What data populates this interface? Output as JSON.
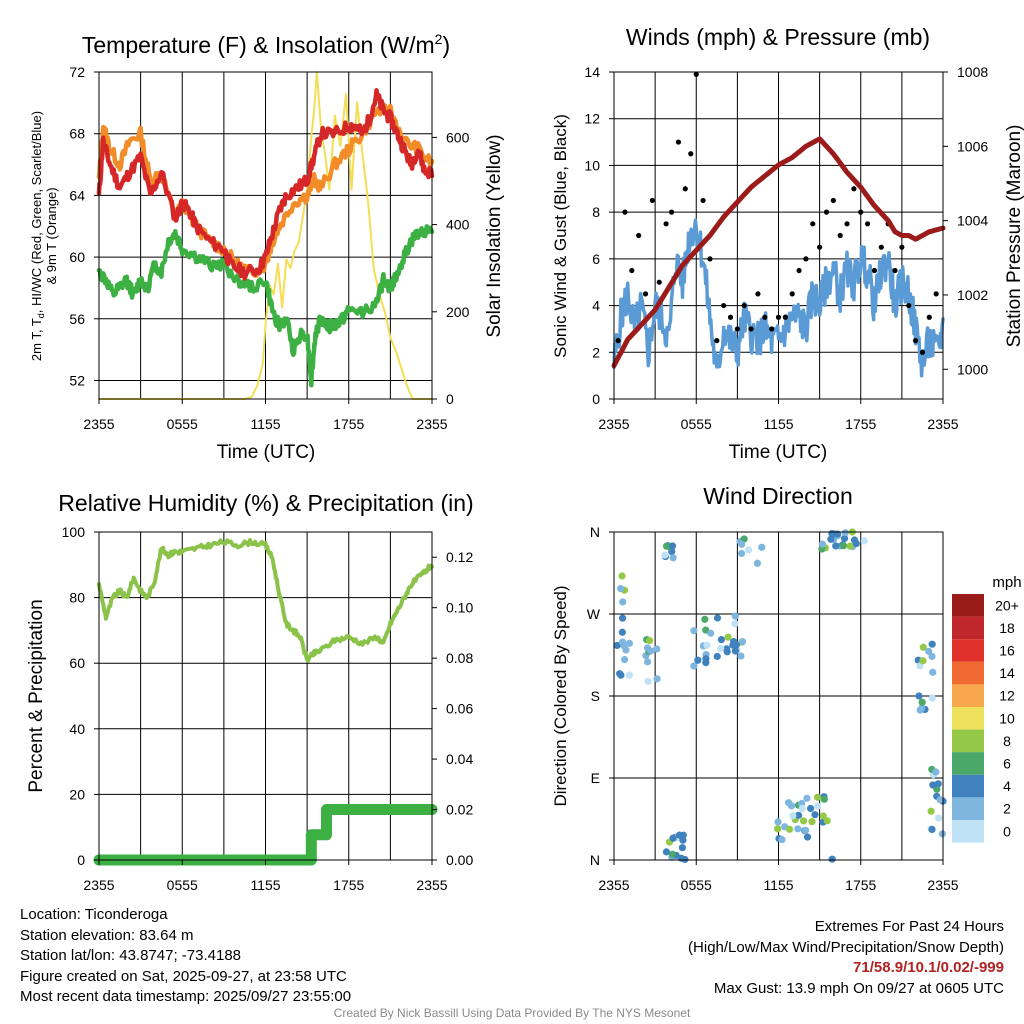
{
  "chart_data": [
    {
      "type": "line",
      "title": "Temperature (F) & Insolation (W/m",
      "title_sup": "2",
      "title_end": ")",
      "xlabel": "Time (UTC)",
      "ylabel_lines": [
        "2m T, T",
        "d",
        ", HI/WC (Red, Green, Scarlet/Blue)",
        "& 9m T (Orange)"
      ],
      "y2label": "Solar Insolation (Yellow)",
      "x_ticks": [
        "2355",
        "0555",
        "1155",
        "1755",
        "2355"
      ],
      "ylim": [
        50.8,
        72
      ],
      "y_ticks": [
        52,
        56,
        60,
        64,
        68,
        72
      ],
      "y2lim": [
        0,
        750
      ],
      "y2_ticks": [
        0,
        200,
        400,
        600
      ],
      "series": [
        {
          "name": "2m T",
          "color": "#d62728",
          "x": [
            0,
            0.3,
            0.8,
            1.5,
            2.2,
            3,
            3.7,
            4.5,
            5.5,
            6,
            6.5,
            7,
            8,
            9,
            9.5,
            10.5,
            11.5,
            12,
            12.5,
            13,
            13.5,
            14.3,
            15,
            15.5,
            16,
            17,
            18,
            18.5,
            19,
            19.5,
            20,
            20.5,
            21,
            21.5,
            22,
            22.5,
            23,
            23.5,
            24
          ],
          "values": [
            64,
            67.5,
            66,
            64.5,
            65.5,
            66.5,
            64,
            65.5,
            62.5,
            63.5,
            63,
            62,
            61,
            60.5,
            59.5,
            59,
            59.2,
            60,
            61.5,
            63,
            64,
            64.5,
            65,
            66.5,
            68,
            68,
            68.5,
            68.5,
            68,
            69,
            70.5,
            69.5,
            69,
            68,
            67,
            66,
            67,
            65.5,
            65.5
          ]
        },
        {
          "name": "Td",
          "color": "#3cb043",
          "x": [
            0,
            0.5,
            1,
            1.5,
            2,
            2.5,
            3,
            3.5,
            4,
            4.5,
            5,
            5.5,
            6,
            7,
            8,
            9,
            10,
            11,
            12,
            12.5,
            13,
            13.5,
            14,
            14.5,
            15,
            15.3,
            15.6,
            16,
            16.5,
            17,
            17.5,
            18,
            19,
            20,
            20.5,
            21,
            21.5,
            22,
            22.5,
            23,
            24
          ],
          "values": [
            59,
            58.5,
            57.5,
            58,
            58.5,
            57.5,
            58.5,
            58,
            59.5,
            59,
            61,
            61.5,
            60.5,
            60,
            59.5,
            59.5,
            58.5,
            58,
            58.5,
            56.5,
            55.5,
            56,
            54,
            55,
            55,
            52,
            55,
            56,
            55.5,
            55.5,
            56,
            56.5,
            56.5,
            57,
            58.5,
            58,
            59,
            60,
            61,
            61.5,
            62
          ]
        },
        {
          "name": "9m T",
          "color": "#f28c28",
          "x": [
            0,
            0.3,
            0.8,
            1.5,
            2.2,
            3,
            3.7,
            4.5,
            5.5,
            6,
            7,
            8,
            9,
            10,
            11,
            12,
            12.5,
            13,
            14,
            15,
            15.5,
            16,
            17,
            18,
            19,
            20,
            21,
            22,
            23,
            24
          ],
          "values": [
            65,
            68.5,
            67,
            66,
            67.5,
            68,
            65,
            65.5,
            62.5,
            63.5,
            62,
            61,
            60.5,
            59.5,
            59,
            59.5,
            61,
            62,
            63.5,
            64,
            65,
            64.5,
            66,
            67,
            68,
            69.5,
            69.5,
            67.5,
            67,
            66
          ]
        },
        {
          "name": "Solar",
          "color": "#f5de54",
          "axis": "y2",
          "x": [
            0,
            10.5,
            11,
            11.4,
            11.8,
            12,
            12.3,
            12.6,
            12.9,
            13.2,
            13.5,
            13.8,
            14.1,
            14.4,
            14.7,
            15,
            15.3,
            15.5,
            15.7,
            16,
            16.3,
            16.6,
            17,
            17.4,
            17.8,
            18.2,
            18.6,
            19,
            19.4,
            19.8,
            20.2,
            20.6,
            21,
            21.4,
            21.8,
            22.2,
            22.6,
            24
          ],
          "values": [
            0,
            0,
            5,
            30,
            80,
            170,
            260,
            240,
            310,
            210,
            320,
            300,
            340,
            360,
            420,
            480,
            600,
            660,
            750,
            620,
            560,
            480,
            650,
            580,
            700,
            480,
            680,
            560,
            450,
            300,
            240,
            200,
            140,
            110,
            70,
            30,
            0,
            0
          ]
        }
      ]
    },
    {
      "type": "scatter",
      "title": "Winds (mph) & Pressure (mb)",
      "xlabel": "Time (UTC)",
      "ylabel": "Sonic Wind & Gust (Blue, Black)",
      "y2label": "Station Pressure (Maroon)",
      "x_ticks": [
        "2355",
        "0555",
        "1155",
        "1755",
        "2355"
      ],
      "ylim": [
        0,
        14
      ],
      "y_ticks": [
        0,
        2,
        4,
        6,
        8,
        10,
        12,
        14
      ],
      "y2lim": [
        999.2,
        1008
      ],
      "y2_ticks": [
        1000,
        1002,
        1004,
        1006,
        1008
      ],
      "series": [
        {
          "name": "Sonic Wind",
          "color": "#5b9bd5",
          "x": [
            0,
            0.5,
            1,
            1.5,
            2,
            2.5,
            3,
            3.5,
            4,
            4.5,
            5,
            5.5,
            6,
            6.5,
            7,
            7.5,
            8,
            8.5,
            9,
            9.5,
            10,
            10.5,
            11,
            11.5,
            12,
            12.5,
            13,
            13.5,
            14,
            14.5,
            15,
            15.5,
            16,
            16.5,
            17,
            17.5,
            18,
            18.5,
            19,
            19.5,
            20,
            20.5,
            21,
            21.5,
            22,
            22.5,
            23,
            23.5,
            24
          ],
          "values": [
            1.5,
            3.5,
            4.5,
            3,
            4,
            2,
            4,
            3.5,
            2.5,
            6,
            5,
            7,
            7.5,
            6,
            3.5,
            1,
            3,
            2.5,
            2,
            3.5,
            2.8,
            2.5,
            3,
            2.5,
            2.5,
            3,
            3.5,
            3.5,
            3,
            4.5,
            4,
            5,
            5.5,
            4.5,
            5.5,
            5,
            6,
            5.5,
            4,
            5.5,
            6,
            4,
            5,
            4.5,
            3,
            1.5,
            2.5,
            2,
            3
          ]
        },
        {
          "name": "Gust",
          "color": "#000000",
          "x": [
            0.3,
            0.8,
            1.3,
            1.8,
            2.3,
            2.8,
            3.3,
            3.8,
            4.2,
            4.7,
            5.2,
            5.6,
            6,
            6.5,
            7,
            7.5,
            8,
            8.5,
            9,
            9.5,
            10,
            10.5,
            11,
            11.5,
            12,
            12.5,
            13,
            13.5,
            14,
            14.5,
            15,
            15.5,
            16,
            16.5,
            17,
            17.5,
            18,
            18.5,
            19,
            19.5,
            20,
            20.5,
            21,
            21.5,
            22,
            22.5,
            23,
            23.5
          ],
          "values": [
            2.5,
            8,
            5.5,
            7,
            4.5,
            8.5,
            5,
            7.5,
            8,
            11,
            9,
            10.5,
            13.9,
            8.5,
            6,
            2.5,
            4,
            3.5,
            3,
            4,
            3,
            4.5,
            3.5,
            3,
            3.5,
            3.5,
            4.5,
            5.5,
            6,
            7.5,
            6.5,
            8,
            8.5,
            7,
            7.5,
            9,
            8,
            7.5,
            5.5,
            6.5,
            7.5,
            5.5,
            6.5,
            4,
            2.5,
            2,
            3.5,
            4.5
          ]
        },
        {
          "name": "Pressure",
          "color": "#9b1b1b",
          "axis": "y2",
          "x": [
            0,
            1,
            2,
            3,
            4,
            5,
            6,
            7,
            8,
            9,
            10,
            11,
            12,
            13,
            14,
            15,
            16,
            17,
            18,
            19,
            20,
            20.5,
            21,
            21.5,
            22,
            22.5,
            23,
            24
          ],
          "values": [
            1000.1,
            1000.8,
            1001.2,
            1001.6,
            1002.2,
            1002.8,
            1003.2,
            1003.6,
            1004.1,
            1004.5,
            1004.9,
            1005.2,
            1005.5,
            1005.7,
            1006,
            1006.2,
            1005.8,
            1005.3,
            1004.9,
            1004.4,
            1004,
            1003.7,
            1003.6,
            1003.6,
            1003.5,
            1003.6,
            1003.7,
            1003.8
          ]
        }
      ]
    },
    {
      "type": "line",
      "title": "Relative Humidity (%) & Precipitation (in)",
      "xlabel": "",
      "ylabel": "Percent & Precipitation",
      "x_ticks": [
        "2355",
        "0555",
        "1155",
        "1755",
        "2355"
      ],
      "ylim": [
        0,
        100
      ],
      "y_ticks": [
        0,
        20,
        40,
        60,
        80,
        100
      ],
      "y2lim": [
        0,
        0.13
      ],
      "y2_ticks": [
        "0.00",
        "0.02",
        "0.04",
        "0.06",
        "0.08",
        "0.10",
        "0.12"
      ],
      "series": [
        {
          "name": "Relative Humidity",
          "color": "#8bc34a",
          "x": [
            0,
            0.5,
            1,
            1.5,
            2,
            2.5,
            3,
            3.5,
            4,
            4.5,
            5,
            5.5,
            6,
            7,
            8,
            9,
            10,
            11,
            12,
            12.5,
            13,
            13.5,
            14,
            14.5,
            15,
            15.5,
            16,
            17,
            18,
            19,
            20,
            20.5,
            21,
            21.5,
            22,
            22.5,
            23,
            23.5,
            24
          ],
          "values": [
            84,
            74,
            80,
            82,
            80,
            86,
            82,
            80,
            85,
            95,
            93,
            94,
            94,
            95,
            96,
            97,
            96,
            97,
            96,
            92,
            81,
            72,
            70,
            68,
            61,
            63,
            64,
            67,
            68,
            66,
            68,
            66,
            72,
            76,
            80,
            84,
            86,
            88,
            90
          ]
        },
        {
          "name": "Precipitation",
          "color": "#3cb043",
          "axis": "y2",
          "x": [
            0,
            15.3,
            15.3,
            16.4,
            16.4,
            24
          ],
          "values": [
            0,
            0,
            0.01,
            0.01,
            0.02,
            0.02
          ]
        }
      ]
    },
    {
      "type": "scatter",
      "title": "Wind Direction",
      "ylabel": "Direction (Colored By Speed)",
      "x_ticks": [
        "2355",
        "0555",
        "1155",
        "1755",
        "2355"
      ],
      "y_tick_labels": [
        "N",
        "E",
        "S",
        "W",
        "N"
      ],
      "y_tick_degrees": [
        0,
        90,
        180,
        270,
        360
      ],
      "ylim": [
        0,
        360
      ],
      "colorbar_title": "mph",
      "colorbar_labels": [
        "20+",
        "18",
        "16",
        "14",
        "12",
        "10",
        "8",
        "6",
        "4",
        "2",
        "0"
      ],
      "colorbar_colors": [
        "#9b1b1b",
        "#c0272d",
        "#e0312b",
        "#f06a31",
        "#f8a84c",
        "#ede05a",
        "#93c947",
        "#4aa868",
        "#3f82be",
        "#7fb6e0",
        "#bfe2f6"
      ],
      "clusters": [
        {
          "t": 0.3,
          "dir": 258,
          "n": 10,
          "spread_t": 0.6,
          "spread_d": 60
        },
        {
          "t": 1.0,
          "dir": 220,
          "n": 6,
          "spread_t": 0.4,
          "spread_d": 20
        },
        {
          "t": 2.5,
          "dir": 225,
          "n": 10,
          "spread_t": 0.7,
          "spread_d": 30
        },
        {
          "t": 4.0,
          "dir": 345,
          "n": 8,
          "spread_t": 0.4,
          "spread_d": 15
        },
        {
          "t": 4.5,
          "dir": 15,
          "n": 14,
          "spread_t": 0.9,
          "spread_d": 15
        },
        {
          "t": 6.2,
          "dir": 230,
          "n": 9,
          "spread_t": 0.8,
          "spread_d": 25
        },
        {
          "t": 8.0,
          "dir": 245,
          "n": 20,
          "spread_t": 1.4,
          "spread_d": 25
        },
        {
          "t": 10.0,
          "dir": 340,
          "n": 7,
          "spread_t": 0.8,
          "spread_d": 15
        },
        {
          "t": 13.0,
          "dir": 45,
          "n": 16,
          "spread_t": 1.2,
          "spread_d": 25
        },
        {
          "t": 14.6,
          "dir": 50,
          "n": 14,
          "spread_t": 1.0,
          "spread_d": 20
        },
        {
          "t": 16.7,
          "dir": 350,
          "n": 22,
          "spread_t": 1.6,
          "spread_d": 12
        },
        {
          "t": 22.7,
          "dir": 200,
          "n": 14,
          "spread_t": 0.7,
          "spread_d": 40
        },
        {
          "t": 23.6,
          "dir": 60,
          "n": 14,
          "spread_t": 0.6,
          "spread_d": 40
        }
      ]
    }
  ],
  "info": {
    "location": "Location: Ticonderoga",
    "elevation": "Station elevation: 83.64 m",
    "latlon": "Station lat/lon: 43.8747; -73.4188",
    "created": "Figure created on Sat, 2025-09-27, at 23:58 UTC",
    "recent": "Most recent data timestamp: 2025/09/27 23:55:00"
  },
  "extremes": {
    "title": "Extremes For Past 24 Hours",
    "subtitle": "(High/Low/Max Wind/Precipitation/Snow Depth)",
    "values": "71/58.9/10.1/0.02/-999",
    "max_gust": "Max Gust: 13.9 mph On 09/27 at 0605 UTC"
  },
  "footer": "Created By Nick Bassill Using Data Provided By The NYS Mesonet"
}
